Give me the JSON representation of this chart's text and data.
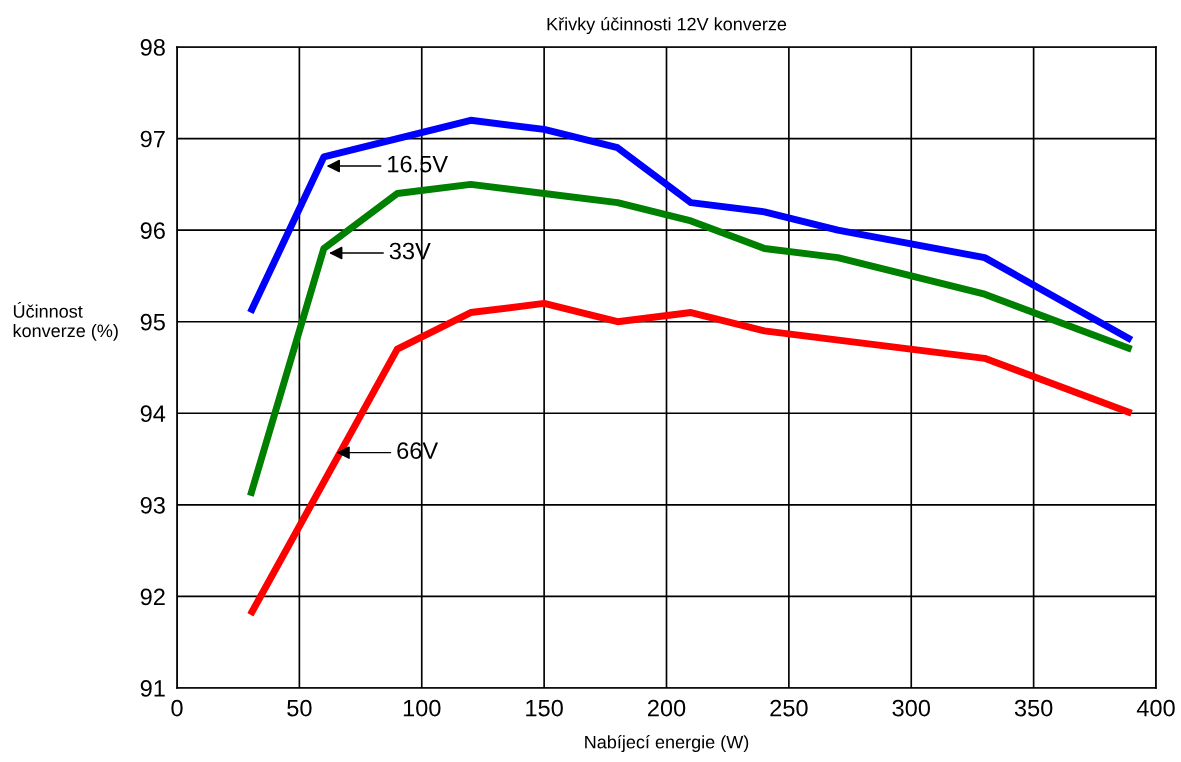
{
  "chart_data": {
    "type": "line",
    "title": "Křivky účinnosti 12V konverze",
    "xlabel": "Nabíjecí energie (W)",
    "ylabel": "Účinnost\nkonverze (%)",
    "series": [
      {
        "color": "#0000ff",
        "x": [
          30,
          60,
          90,
          120,
          150,
          180,
          210,
          240,
          270,
          330,
          390
        ],
        "values": [
          95.1,
          96.8,
          97.0,
          97.2,
          97.1,
          96.9,
          96.3,
          96.2,
          96.0,
          95.7,
          94.8
        ]
      },
      {
        "color": "#008000",
        "x": [
          30,
          60,
          90,
          120,
          150,
          180,
          210,
          240,
          270,
          330,
          390
        ],
        "values": [
          93.1,
          95.8,
          96.4,
          96.5,
          96.4,
          96.3,
          96.1,
          95.8,
          95.7,
          95.3,
          94.7
        ]
      },
      {
        "color": "#ff0000",
        "x": [
          30,
          90,
          120,
          150,
          180,
          210,
          240,
          330,
          390
        ],
        "values": [
          91.8,
          94.7,
          95.1,
          95.2,
          95.0,
          95.1,
          94.9,
          94.6,
          94.0
        ]
      }
    ],
    "annotations": [
      {
        "text": "16.5V",
        "x": 60,
        "y": 96.7
      },
      {
        "text": "33V",
        "x": 61,
        "y": 95.75
      },
      {
        "text": "66V",
        "x": 64,
        "y": 93.57
      }
    ],
    "xlim": [
      0,
      400
    ],
    "xticks": [
      0,
      50,
      100,
      150,
      200,
      250,
      300,
      350,
      400
    ],
    "ylim": [
      91,
      98
    ],
    "yticks": [
      91,
      92,
      93,
      94,
      95,
      96,
      97,
      98
    ],
    "grid": true,
    "marker": "none",
    "line_style": "solid",
    "legend": false
  }
}
